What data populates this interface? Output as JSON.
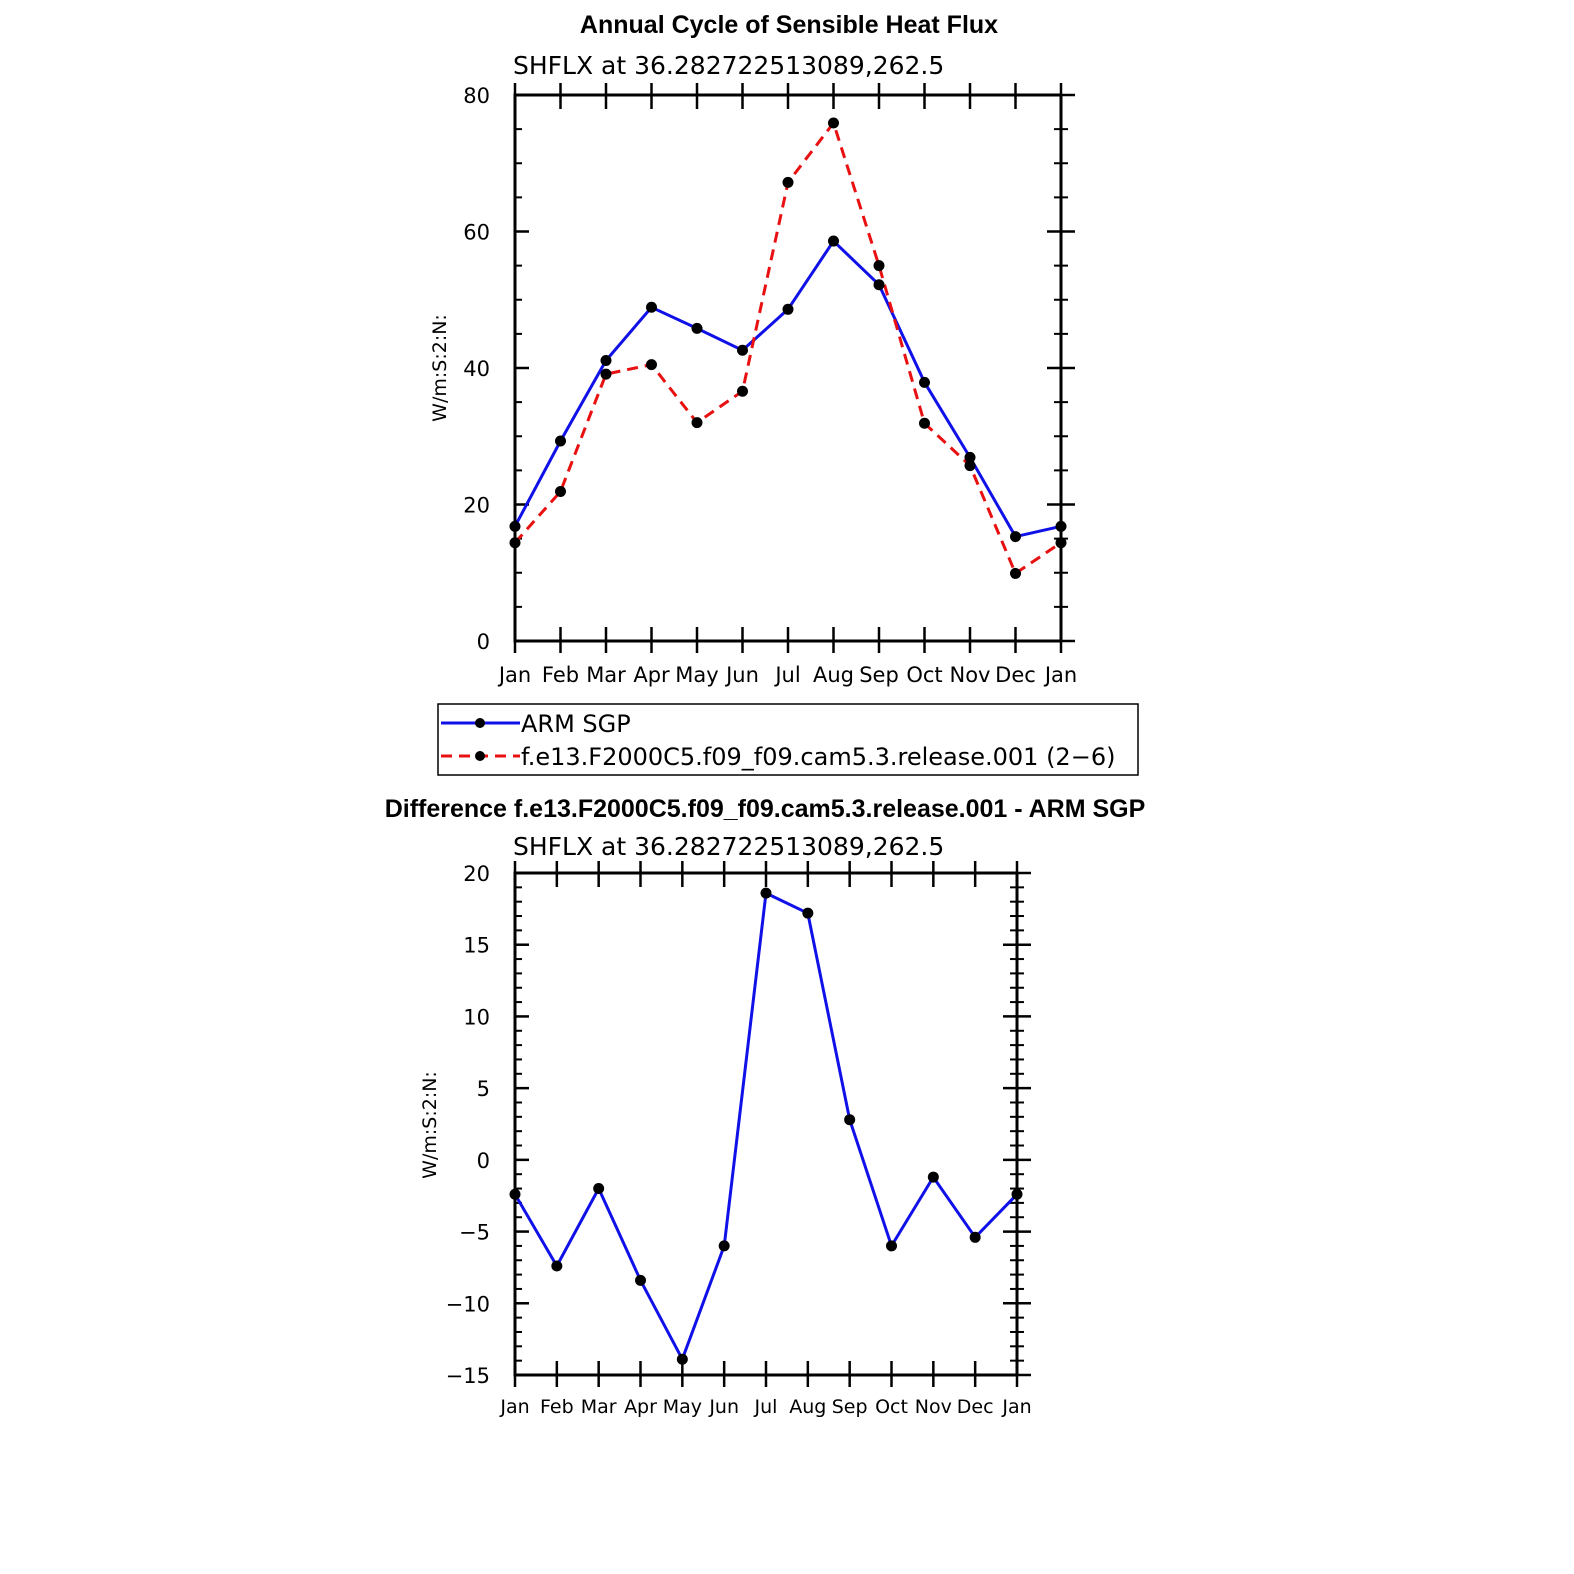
{
  "colors": {
    "series_a": "#1010e8",
    "series_b": "#e81010",
    "marker": "#000000"
  },
  "legend": {
    "items": [
      {
        "label": "ARM SGP",
        "style": "solid",
        "color": "#1010e8"
      },
      {
        "label": "f.e13.F2000C5.f09_f09.cam5.3.release.001 (2−6)",
        "style": "dashed",
        "color": "#e81010"
      }
    ]
  },
  "chart_data": [
    {
      "type": "line",
      "title": "Annual Cycle of Sensible Heat Flux",
      "subtitle": "SHFLX at 36.282722513089,262.5",
      "xlabel": "",
      "ylabel": "W/m:S:2:N:",
      "categories": [
        "Jan",
        "Feb",
        "Mar",
        "Apr",
        "May",
        "Jun",
        "Jul",
        "Aug",
        "Sep",
        "Oct",
        "Nov",
        "Dec",
        "Jan"
      ],
      "ylim": [
        0,
        80
      ],
      "yticks": [
        0,
        20,
        40,
        60,
        80
      ],
      "series": [
        {
          "name": "ARM SGP",
          "values": [
            16.8,
            29.3,
            41.1,
            48.9,
            45.8,
            42.6,
            48.6,
            58.6,
            52.2,
            37.9,
            26.9,
            15.3,
            16.8
          ]
        },
        {
          "name": "f.e13.F2000C5.f09_f09.cam5.3.release.001 (2−6)",
          "values": [
            14.4,
            21.9,
            39.1,
            40.5,
            32.0,
            36.6,
            67.2,
            75.9,
            55.0,
            31.9,
            25.7,
            9.9,
            14.4
          ]
        }
      ]
    },
    {
      "type": "line",
      "title": "Difference f.e13.F2000C5.f09_f09.cam5.3.release.001 - ARM SGP",
      "subtitle": "SHFLX at 36.282722513089,262.5",
      "xlabel": "",
      "ylabel": "W/m:S:2:N:",
      "categories": [
        "Jan",
        "Feb",
        "Mar",
        "Apr",
        "May",
        "Jun",
        "Jul",
        "Aug",
        "Sep",
        "Oct",
        "Nov",
        "Dec",
        "Jan"
      ],
      "ylim": [
        -15,
        20
      ],
      "yticks": [
        -15,
        -10,
        -5,
        0,
        5,
        10,
        15,
        20
      ],
      "ytick_labels": [
        "−15",
        "−10",
        "−5",
        "0",
        "5",
        "10",
        "15",
        "20"
      ],
      "series": [
        {
          "name": "Difference",
          "values": [
            -2.4,
            -7.4,
            -2.0,
            -8.4,
            -13.9,
            -6.0,
            18.6,
            17.2,
            2.8,
            -6.0,
            -1.2,
            -5.4,
            -2.4
          ]
        }
      ]
    }
  ]
}
